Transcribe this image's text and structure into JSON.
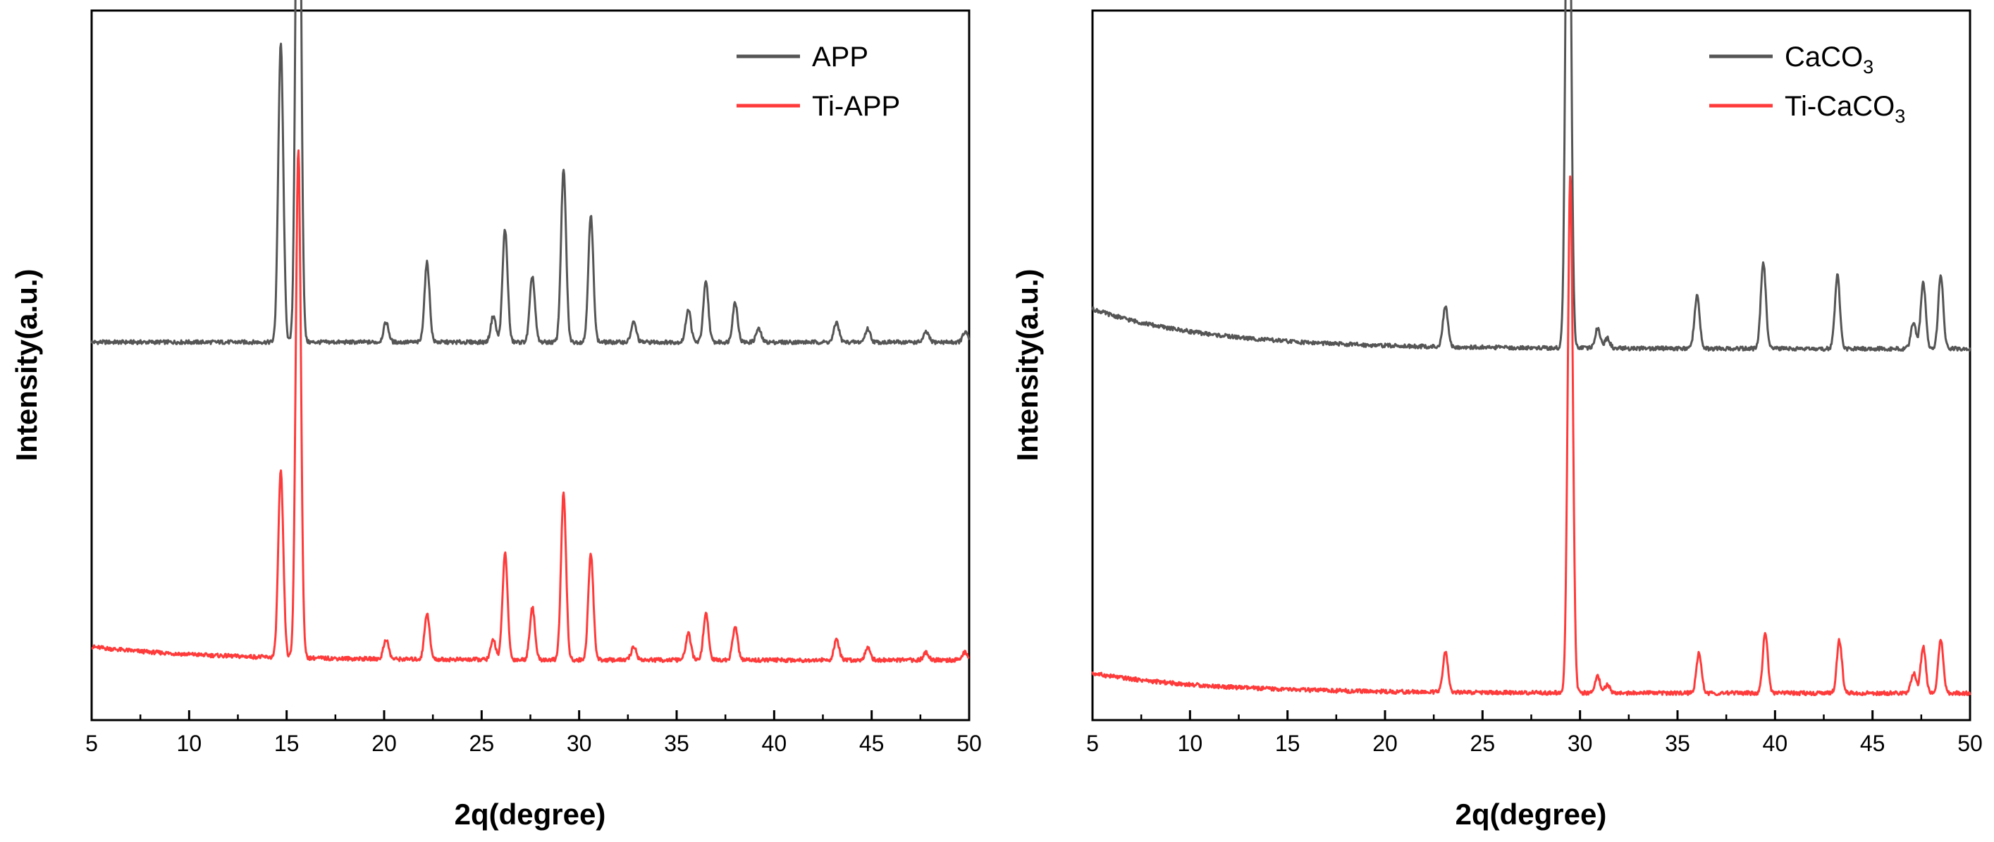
{
  "chart_data": [
    {
      "type": "line",
      "panel": "left",
      "xlabel": "2q(degree)",
      "ylabel": "Intensity(a.u.)",
      "xlim": [
        5,
        50
      ],
      "xticks": [
        "5",
        "10",
        "15",
        "20",
        "25",
        "30",
        "35",
        "40",
        "45",
        "50"
      ],
      "legend_position": "top-right",
      "legend": [
        {
          "name": "APP",
          "color": "#555555"
        },
        {
          "name": "Ti-APP",
          "color": "#ff3a3a"
        }
      ],
      "series": [
        {
          "name": "APP",
          "color": "#555555",
          "baseline": 0.56,
          "baseline_start_extra": 0.0,
          "peaks": [
            {
              "x": 14.7,
              "h": 0.45
            },
            {
              "x": 15.6,
              "h": 1.0
            },
            {
              "x": 20.1,
              "h": 0.03
            },
            {
              "x": 22.2,
              "h": 0.12
            },
            {
              "x": 25.6,
              "h": 0.04
            },
            {
              "x": 26.2,
              "h": 0.17
            },
            {
              "x": 27.6,
              "h": 0.1
            },
            {
              "x": 29.2,
              "h": 0.26
            },
            {
              "x": 30.6,
              "h": 0.19
            },
            {
              "x": 32.8,
              "h": 0.03
            },
            {
              "x": 35.6,
              "h": 0.05
            },
            {
              "x": 36.5,
              "h": 0.09
            },
            {
              "x": 38.0,
              "h": 0.06
            },
            {
              "x": 39.2,
              "h": 0.02
            },
            {
              "x": 43.2,
              "h": 0.03
            },
            {
              "x": 44.8,
              "h": 0.02
            },
            {
              "x": 47.8,
              "h": 0.015
            },
            {
              "x": 49.8,
              "h": 0.015
            }
          ]
        },
        {
          "name": "Ti-APP",
          "color": "#ff3a3a",
          "baseline": 0.08,
          "baseline_start_extra": 0.02,
          "peaks": [
            {
              "x": 14.7,
              "h": 0.28
            },
            {
              "x": 15.6,
              "h": 0.77
            },
            {
              "x": 20.1,
              "h": 0.03
            },
            {
              "x": 22.2,
              "h": 0.07
            },
            {
              "x": 25.6,
              "h": 0.03
            },
            {
              "x": 26.2,
              "h": 0.16
            },
            {
              "x": 27.6,
              "h": 0.08
            },
            {
              "x": 29.2,
              "h": 0.25
            },
            {
              "x": 30.6,
              "h": 0.16
            },
            {
              "x": 32.8,
              "h": 0.02
            },
            {
              "x": 35.6,
              "h": 0.04
            },
            {
              "x": 36.5,
              "h": 0.07
            },
            {
              "x": 38.0,
              "h": 0.05
            },
            {
              "x": 43.2,
              "h": 0.03
            },
            {
              "x": 44.8,
              "h": 0.02
            },
            {
              "x": 47.8,
              "h": 0.012
            },
            {
              "x": 49.8,
              "h": 0.012
            }
          ]
        }
      ]
    },
    {
      "type": "line",
      "panel": "right",
      "xlabel": "2q(degree)",
      "ylabel": "Intensity(a.u.)",
      "xlim": [
        5,
        50
      ],
      "xticks": [
        "5",
        "10",
        "15",
        "20",
        "25",
        "30",
        "35",
        "40",
        "45",
        "50"
      ],
      "legend_position": "top-right",
      "legend": [
        {
          "name": "CaCO",
          "sub": "3",
          "color": "#555555"
        },
        {
          "name": "Ti-CaCO",
          "sub": "3",
          "color": "#ff3a3a"
        }
      ],
      "series": [
        {
          "name": "CaCO3",
          "color": "#555555",
          "baseline": 0.55,
          "baseline_start_extra": 0.06,
          "peaks": [
            {
              "x": 23.1,
              "h": 0.06
            },
            {
              "x": 29.4,
              "h": 0.98
            },
            {
              "x": 30.9,
              "h": 0.03
            },
            {
              "x": 31.4,
              "h": 0.015
            },
            {
              "x": 36.0,
              "h": 0.08
            },
            {
              "x": 39.4,
              "h": 0.13
            },
            {
              "x": 43.2,
              "h": 0.11
            },
            {
              "x": 47.1,
              "h": 0.04
            },
            {
              "x": 47.6,
              "h": 0.1
            },
            {
              "x": 48.5,
              "h": 0.11
            }
          ]
        },
        {
          "name": "Ti-CaCO3",
          "color": "#ff3a3a",
          "baseline": 0.03,
          "baseline_start_extra": 0.03,
          "peaks": [
            {
              "x": 23.1,
              "h": 0.06
            },
            {
              "x": 29.5,
              "h": 0.78
            },
            {
              "x": 30.9,
              "h": 0.025
            },
            {
              "x": 31.4,
              "h": 0.012
            },
            {
              "x": 36.1,
              "h": 0.06
            },
            {
              "x": 39.5,
              "h": 0.09
            },
            {
              "x": 43.3,
              "h": 0.08
            },
            {
              "x": 47.1,
              "h": 0.03
            },
            {
              "x": 47.6,
              "h": 0.07
            },
            {
              "x": 48.5,
              "h": 0.08
            }
          ]
        }
      ]
    }
  ]
}
